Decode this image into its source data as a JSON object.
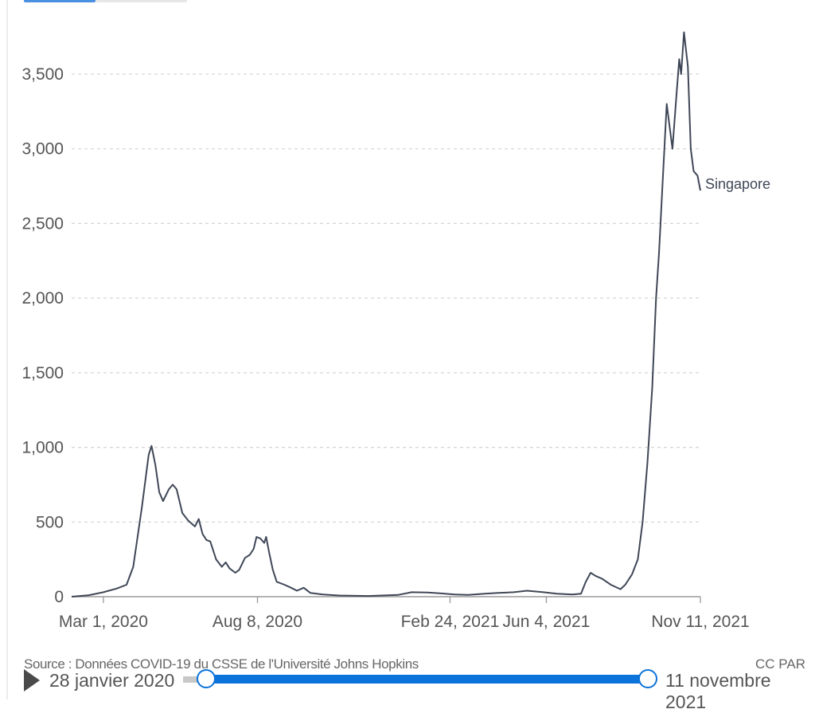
{
  "chart_data": {
    "type": "line",
    "title": "",
    "xlabel": "",
    "ylabel": "",
    "x_ticks": [
      "Mar 1, 2020",
      "Aug 8, 2020",
      "Feb 24, 2021",
      "Jun 4, 2021",
      "Nov 11, 2021"
    ],
    "y_ticks": [
      "0",
      "500",
      "1,000",
      "1,500",
      "2,000",
      "2,500",
      "3,000",
      "3,500"
    ],
    "xlim": [
      "2020-01-28",
      "2021-11-11"
    ],
    "ylim": [
      0,
      3750
    ],
    "grid": "horizontal dashed",
    "legend": "none (series label at line end)",
    "series": [
      {
        "name": "Singapore",
        "color": "#3f4757",
        "points": [
          [
            "2020-01-28",
            0
          ],
          [
            "2020-02-15",
            10
          ],
          [
            "2020-03-01",
            30
          ],
          [
            "2020-03-15",
            55
          ],
          [
            "2020-03-25",
            80
          ],
          [
            "2020-04-01",
            200
          ],
          [
            "2020-04-10",
            600
          ],
          [
            "2020-04-17",
            950
          ],
          [
            "2020-04-20",
            1010
          ],
          [
            "2020-04-24",
            880
          ],
          [
            "2020-04-28",
            700
          ],
          [
            "2020-05-02",
            640
          ],
          [
            "2020-05-08",
            720
          ],
          [
            "2020-05-12",
            750
          ],
          [
            "2020-05-16",
            720
          ],
          [
            "2020-05-22",
            560
          ],
          [
            "2020-05-28",
            510
          ],
          [
            "2020-06-04",
            470
          ],
          [
            "2020-06-08",
            520
          ],
          [
            "2020-06-12",
            420
          ],
          [
            "2020-06-16",
            380
          ],
          [
            "2020-06-20",
            370
          ],
          [
            "2020-06-26",
            250
          ],
          [
            "2020-07-02",
            200
          ],
          [
            "2020-07-06",
            230
          ],
          [
            "2020-07-10",
            190
          ],
          [
            "2020-07-16",
            160
          ],
          [
            "2020-07-20",
            180
          ],
          [
            "2020-07-26",
            260
          ],
          [
            "2020-07-31",
            280
          ],
          [
            "2020-08-04",
            320
          ],
          [
            "2020-08-07",
            400
          ],
          [
            "2020-08-11",
            390
          ],
          [
            "2020-08-15",
            360
          ],
          [
            "2020-08-17",
            400
          ],
          [
            "2020-08-20",
            300
          ],
          [
            "2020-08-24",
            180
          ],
          [
            "2020-08-28",
            100
          ],
          [
            "2020-09-05",
            80
          ],
          [
            "2020-09-12",
            60
          ],
          [
            "2020-09-18",
            40
          ],
          [
            "2020-09-25",
            60
          ],
          [
            "2020-10-02",
            25
          ],
          [
            "2020-10-15",
            15
          ],
          [
            "2020-11-01",
            8
          ],
          [
            "2020-12-01",
            5
          ],
          [
            "2021-01-01",
            12
          ],
          [
            "2021-01-15",
            30
          ],
          [
            "2021-02-01",
            28
          ],
          [
            "2021-02-15",
            22
          ],
          [
            "2021-03-01",
            15
          ],
          [
            "2021-03-15",
            12
          ],
          [
            "2021-04-01",
            20
          ],
          [
            "2021-04-15",
            25
          ],
          [
            "2021-05-01",
            30
          ],
          [
            "2021-05-15",
            40
          ],
          [
            "2021-06-01",
            30
          ],
          [
            "2021-06-15",
            20
          ],
          [
            "2021-07-01",
            15
          ],
          [
            "2021-07-10",
            20
          ],
          [
            "2021-07-15",
            100
          ],
          [
            "2021-07-20",
            160
          ],
          [
            "2021-07-25",
            140
          ],
          [
            "2021-08-01",
            120
          ],
          [
            "2021-08-10",
            80
          ],
          [
            "2021-08-20",
            50
          ],
          [
            "2021-08-25",
            80
          ],
          [
            "2021-09-01",
            150
          ],
          [
            "2021-09-07",
            250
          ],
          [
            "2021-09-12",
            500
          ],
          [
            "2021-09-17",
            900
          ],
          [
            "2021-09-22",
            1400
          ],
          [
            "2021-09-26",
            2000
          ],
          [
            "2021-09-29",
            2300
          ],
          [
            "2021-10-03",
            2800
          ],
          [
            "2021-10-07",
            3300
          ],
          [
            "2021-10-10",
            3150
          ],
          [
            "2021-10-13",
            3000
          ],
          [
            "2021-10-17",
            3350
          ],
          [
            "2021-10-20",
            3600
          ],
          [
            "2021-10-22",
            3500
          ],
          [
            "2021-10-25",
            3780
          ],
          [
            "2021-10-29",
            3550
          ],
          [
            "2021-11-01",
            3000
          ],
          [
            "2021-11-04",
            2850
          ],
          [
            "2021-11-08",
            2820
          ],
          [
            "2021-11-11",
            2720
          ]
        ]
      }
    ]
  },
  "footer": {
    "source": "Source : Données COVID-19 du CSSE de l'Université Johns Hopkins",
    "license": "CC PAR",
    "start_date": "28 janvier 2020",
    "end_date": "11 novembre 2021"
  }
}
